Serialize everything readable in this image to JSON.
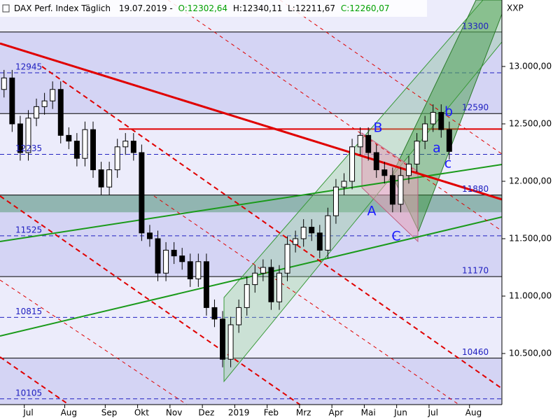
{
  "chart_data": {
    "type": "candlestick",
    "header": {
      "name": "DAX Perf. Index Täglich",
      "date": "19.07.2019 -",
      "open": "O:12302,64",
      "high": "H:12340,11",
      "low": "L:12211,67",
      "close": "C:12260,07"
    },
    "symbol": "XXP",
    "categories": [
      null,
      null,
      null,
      "Jul",
      null,
      null,
      null,
      null,
      "Aug",
      null,
      null,
      null,
      null,
      "Sep",
      null,
      null,
      null,
      "Okt",
      null,
      null,
      null,
      "Nov",
      null,
      null,
      null,
      "Dez",
      null,
      null,
      null,
      "2019",
      null,
      null,
      null,
      "Feb",
      null,
      null,
      null,
      "Mrz",
      null,
      null,
      null,
      "Apr",
      null,
      null,
      null,
      "Mai",
      null,
      null,
      null,
      "Jun",
      null,
      null,
      null,
      "Jul",
      null,
      null,
      null,
      null,
      "Aug",
      null,
      null,
      null
    ],
    "open": [
      12800,
      12900,
      12500,
      12250,
      12550,
      12650,
      12700,
      12800,
      12400,
      12350,
      12200,
      12450,
      12100,
      11950,
      12100,
      12300,
      12350,
      12250,
      11550,
      11500,
      11200,
      11400,
      11350,
      11300,
      11150,
      11300,
      10900,
      10800,
      10450,
      10750,
      10900,
      11100,
      11200,
      11250,
      10950,
      11200,
      11450,
      11500,
      11600,
      11550,
      11400,
      11700,
      11950,
      12000,
      12300,
      12400,
      12250,
      12100,
      12050,
      11800,
      12050,
      12150,
      12350,
      12500,
      12600,
      12450,
      null,
      null,
      null,
      null,
      null,
      null
    ],
    "high": [
      12970,
      12970,
      12570,
      12620,
      12720,
      12770,
      12870,
      12870,
      12470,
      12420,
      12520,
      12520,
      12170,
      12170,
      12370,
      12420,
      12420,
      12320,
      11620,
      11570,
      11470,
      11470,
      11420,
      11370,
      11370,
      11370,
      10970,
      10870,
      10820,
      10970,
      11170,
      11270,
      11320,
      11320,
      11270,
      11520,
      11570,
      11670,
      11670,
      11620,
      11770,
      12020,
      12070,
      12370,
      12470,
      12470,
      12320,
      12170,
      12120,
      12120,
      12220,
      12420,
      12570,
      12670,
      12670,
      12520,
      null,
      null,
      null,
      null,
      null,
      null
    ],
    "low": [
      12730,
      12430,
      12180,
      12180,
      12480,
      12580,
      12630,
      12330,
      12280,
      12130,
      12130,
      12030,
      11880,
      11880,
      12030,
      12230,
      12180,
      11480,
      11430,
      11130,
      11130,
      11280,
      11230,
      11080,
      11080,
      10830,
      10730,
      10380,
      10380,
      10680,
      10830,
      11030,
      11130,
      10880,
      10880,
      11130,
      11380,
      11430,
      11480,
      11330,
      11330,
      11630,
      11880,
      11930,
      12230,
      12180,
      12030,
      11980,
      11730,
      11730,
      11980,
      12080,
      12280,
      12430,
      12380,
      12190,
      null,
      null,
      null,
      null,
      null,
      null
    ],
    "close": [
      12900,
      12500,
      12250,
      12550,
      12650,
      12700,
      12800,
      12400,
      12350,
      12200,
      12450,
      12100,
      11950,
      12100,
      12300,
      12350,
      12250,
      11550,
      11500,
      11200,
      11400,
      11350,
      11300,
      11150,
      11300,
      10900,
      10800,
      10450,
      10750,
      10900,
      11100,
      11200,
      11250,
      10950,
      11200,
      11450,
      11500,
      11600,
      11550,
      11400,
      11700,
      11950,
      12000,
      12300,
      12400,
      12250,
      12100,
      12050,
      11800,
      12050,
      12150,
      12350,
      12500,
      12600,
      12450,
      12260,
      null,
      null,
      null,
      null,
      null,
      null
    ],
    "ylim": [
      10055,
      13579
    ],
    "yticks": [
      {
        "value": 10500,
        "label": "10.500,00"
      },
      {
        "value": 11000,
        "label": "11.000,00"
      },
      {
        "value": 11500,
        "label": "11.500,00"
      },
      {
        "value": 12000,
        "label": "12.000,00"
      },
      {
        "value": 12500,
        "label": "12.500,00"
      },
      {
        "value": 13000,
        "label": "13.000,00"
      }
    ],
    "levels": [
      13300,
      12945,
      12590,
      12235,
      11880,
      11525,
      11170,
      10815,
      10460,
      10105
    ],
    "support_zone": [
      11730,
      11880
    ],
    "resistance": 12455,
    "wave_labels": [
      "A",
      "B",
      "C",
      "a",
      "b",
      "c"
    ],
    "up_color": "#00a000",
    "down_color": "#000000"
  }
}
